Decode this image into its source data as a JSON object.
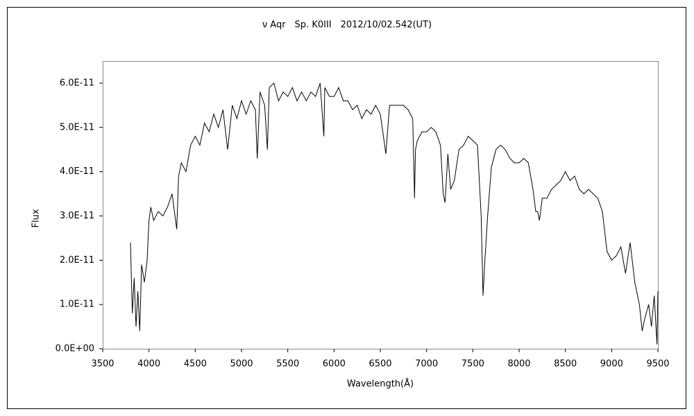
{
  "chart_data": {
    "type": "line",
    "title": "ν Aqr　Sp. K0III　2012/10/02.542(UT)",
    "x_label": "Wavelength(Å)",
    "y_label": "Flux",
    "xlim": [
      3500,
      9500
    ],
    "xticks": [
      3500,
      4000,
      4500,
      5000,
      5500,
      6000,
      6500,
      7000,
      7500,
      8000,
      8500,
      9000,
      9500
    ],
    "ylim": [
      0,
      6.5e-11
    ],
    "yticks": [
      {
        "value": 0,
        "label": "0.0E+00"
      },
      {
        "value": 1e-11,
        "label": "1.0E-11"
      },
      {
        "value": 2e-11,
        "label": "2.0E-11"
      },
      {
        "value": 3e-11,
        "label": "3.0E-11"
      },
      {
        "value": 4e-11,
        "label": "4.0E-11"
      },
      {
        "value": 5e-11,
        "label": "5.0E-11"
      },
      {
        "value": 6e-11,
        "label": "6.0E-11"
      }
    ],
    "grid": false,
    "series": [
      {
        "color": "#000000",
        "x": [
          3800,
          3820,
          3840,
          3860,
          3880,
          3900,
          3920,
          3950,
          3980,
          4000,
          4020,
          4050,
          4100,
          4150,
          4200,
          4250,
          4300,
          4320,
          4350,
          4400,
          4450,
          4500,
          4550,
          4600,
          4650,
          4700,
          4750,
          4800,
          4850,
          4900,
          4950,
          5000,
          5050,
          5100,
          5150,
          5170,
          5200,
          5250,
          5280,
          5300,
          5350,
          5400,
          5450,
          5500,
          5550,
          5600,
          5650,
          5700,
          5750,
          5800,
          5850,
          5890,
          5900,
          5950,
          6000,
          6050,
          6100,
          6150,
          6200,
          6250,
          6300,
          6350,
          6400,
          6450,
          6500,
          6560,
          6600,
          6650,
          6700,
          6750,
          6800,
          6850,
          6870,
          6880,
          6900,
          6950,
          7000,
          7050,
          7100,
          7150,
          7180,
          7200,
          7230,
          7260,
          7300,
          7350,
          7400,
          7450,
          7500,
          7550,
          7590,
          7610,
          7630,
          7660,
          7700,
          7750,
          7800,
          7850,
          7900,
          7950,
          8000,
          8050,
          8100,
          8150,
          8180,
          8200,
          8220,
          8250,
          8300,
          8350,
          8400,
          8450,
          8500,
          8550,
          8600,
          8650,
          8700,
          8750,
          8800,
          8850,
          8900,
          8950,
          9000,
          9050,
          9100,
          9150,
          9200,
          9250,
          9300,
          9330,
          9360,
          9400,
          9430,
          9460,
          9490,
          9500
        ],
        "values": [
          2.4e-11,
          8e-12,
          1.6e-11,
          5e-12,
          1.3e-11,
          4e-12,
          1.9e-11,
          1.5e-11,
          2e-11,
          2.9e-11,
          3.2e-11,
          2.9e-11,
          3.1e-11,
          3e-11,
          3.2e-11,
          3.5e-11,
          2.7e-11,
          3.9e-11,
          4.2e-11,
          4e-11,
          4.6e-11,
          4.8e-11,
          4.6e-11,
          5.1e-11,
          4.9e-11,
          5.3e-11,
          5e-11,
          5.4e-11,
          4.5e-11,
          5.5e-11,
          5.2e-11,
          5.6e-11,
          5.3e-11,
          5.6e-11,
          5.4e-11,
          4.3e-11,
          5.8e-11,
          5.5e-11,
          4.5e-11,
          5.9e-11,
          6e-11,
          5.6e-11,
          5.8e-11,
          5.7e-11,
          5.9e-11,
          5.6e-11,
          5.8e-11,
          5.6e-11,
          5.8e-11,
          5.7e-11,
          6e-11,
          4.8e-11,
          5.9e-11,
          5.7e-11,
          5.7e-11,
          5.9e-11,
          5.6e-11,
          5.6e-11,
          5.4e-11,
          5.5e-11,
          5.2e-11,
          5.4e-11,
          5.3e-11,
          5.5e-11,
          5.3e-11,
          4.4e-11,
          5.5e-11,
          5.5e-11,
          5.5e-11,
          5.5e-11,
          5.4e-11,
          5.2e-11,
          3.4e-11,
          4.5e-11,
          4.7e-11,
          4.9e-11,
          4.9e-11,
          5e-11,
          4.9e-11,
          4.6e-11,
          3.5e-11,
          3.3e-11,
          4.4e-11,
          3.6e-11,
          3.8e-11,
          4.5e-11,
          4.6e-11,
          4.8e-11,
          4.7e-11,
          4.6e-11,
          3e-11,
          1.2e-11,
          2e-11,
          3e-11,
          4.1e-11,
          4.5e-11,
          4.6e-11,
          4.5e-11,
          4.3e-11,
          4.2e-11,
          4.2e-11,
          4.3e-11,
          4.2e-11,
          3.6e-11,
          3.1e-11,
          3.1e-11,
          2.9e-11,
          3.4e-11,
          3.4e-11,
          3.6e-11,
          3.7e-11,
          3.8e-11,
          4e-11,
          3.8e-11,
          3.9e-11,
          3.6e-11,
          3.5e-11,
          3.6e-11,
          3.5e-11,
          3.4e-11,
          3.1e-11,
          2.2e-11,
          2e-11,
          2.1e-11,
          2.3e-11,
          1.7e-11,
          2.4e-11,
          1.5e-11,
          1e-11,
          4e-12,
          7e-12,
          1e-11,
          5e-12,
          1.2e-11,
          1e-12,
          1.3e-11
        ]
      }
    ]
  }
}
